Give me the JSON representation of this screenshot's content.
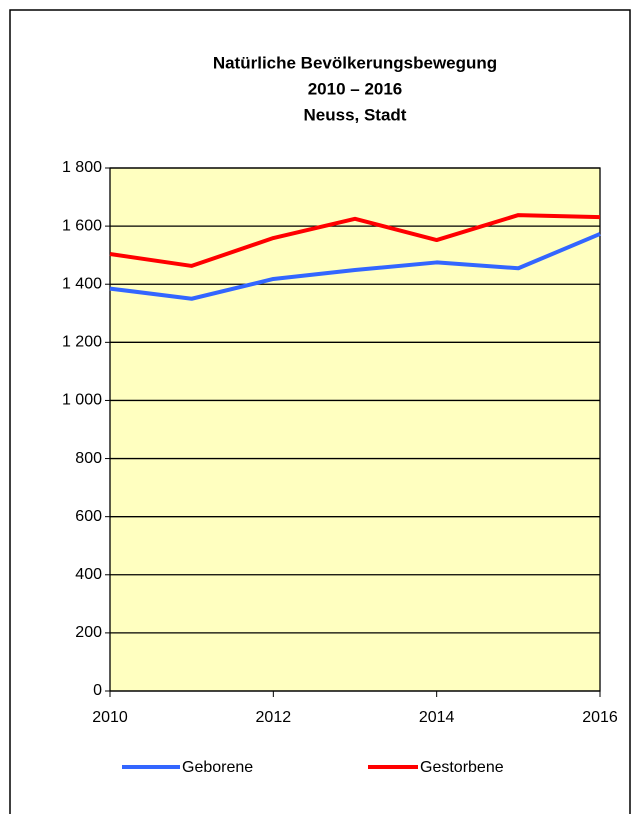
{
  "chart_data": {
    "type": "line",
    "title": [
      "Natürliche Bevölkerungsbewegung",
      "2010 – 2016",
      "Neuss, Stadt"
    ],
    "x": [
      2010,
      2011,
      2012,
      2013,
      2014,
      2015,
      2016
    ],
    "series": [
      {
        "name": "Geborene",
        "color": "#3366ff",
        "values": [
          1385,
          1350,
          1418,
          1449,
          1475,
          1455,
          1573
        ]
      },
      {
        "name": "Gestorbene",
        "color": "#ff0000",
        "values": [
          1504,
          1463,
          1559,
          1625,
          1552,
          1638,
          1631
        ]
      }
    ],
    "xlim": [
      2010,
      2016
    ],
    "xticks": [
      2010,
      2012,
      2014,
      2016
    ],
    "ylim": [
      0,
      1800
    ],
    "yticks": [
      0,
      200,
      400,
      600,
      800,
      {
        "value": 1000,
        "label": "1 000"
      },
      {
        "value": 1200,
        "label": "1 200"
      },
      {
        "value": 1400,
        "label": "1 400"
      },
      {
        "value": 1600,
        "label": "1 600"
      },
      {
        "value": 1800,
        "label": "1 800"
      }
    ],
    "grid": true,
    "legend": "bottom",
    "plot_background": "#ffffc0"
  }
}
